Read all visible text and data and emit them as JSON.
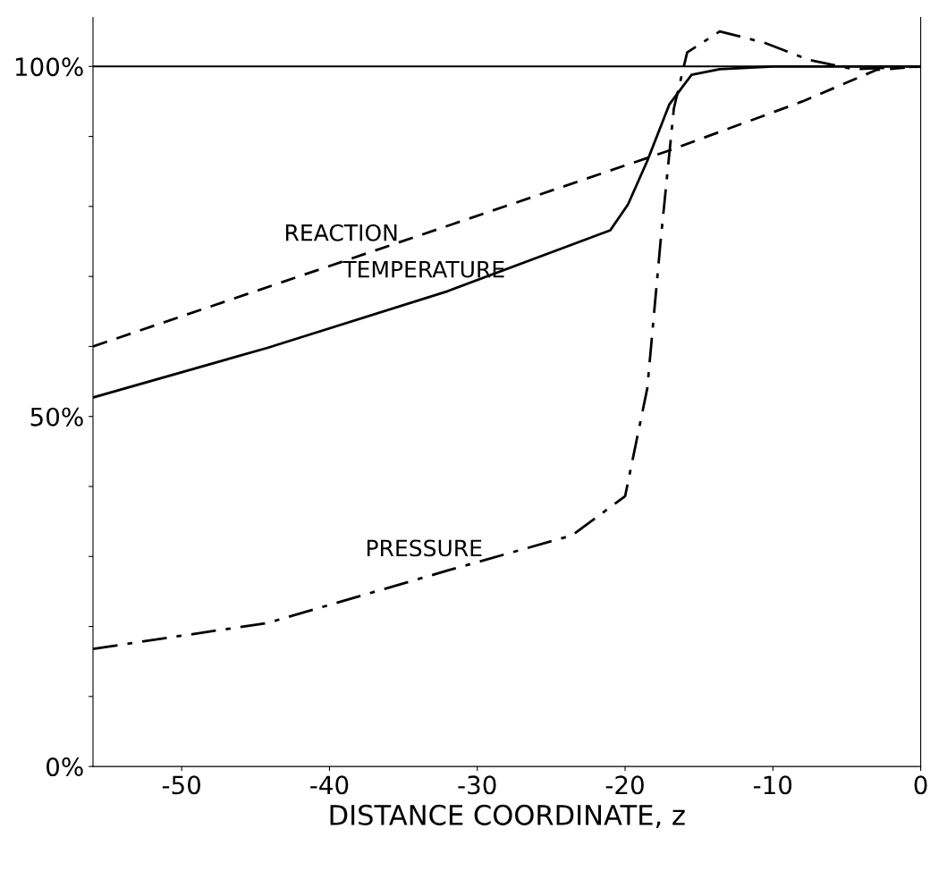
{
  "chart_data": {
    "type": "line",
    "xlabel": "DISTANCE COORDINATE, z",
    "xlim": [
      -56,
      0
    ],
    "xticks": [
      -50,
      -40,
      -30,
      -20,
      -10,
      0
    ],
    "ylim": [
      0,
      107
    ],
    "yticks": [
      {
        "value": 0,
        "label": "0%"
      },
      {
        "value": 10,
        "label": null
      },
      {
        "value": 20,
        "label": null
      },
      {
        "value": 30,
        "label": null
      },
      {
        "value": 40,
        "label": null
      },
      {
        "value": 50,
        "label": "50%"
      },
      {
        "value": 60,
        "label": null
      },
      {
        "value": 70,
        "label": null
      },
      {
        "value": 80,
        "label": null
      },
      {
        "value": 90,
        "label": null
      },
      {
        "value": 100,
        "label": "100%"
      }
    ],
    "grid": false,
    "legend": false,
    "marker": "none",
    "ref_lines": [
      {
        "axis": "y",
        "value": 100,
        "label": null,
        "color": "#000000",
        "line_style": "solid"
      }
    ],
    "series": [
      {
        "name": "REACTION",
        "color": "#000000",
        "line_style": "dashed",
        "x": [
          -56,
          -17,
          -8,
          -3,
          0
        ],
        "values": [
          60,
          88,
          95,
          99.5,
          100
        ]
      },
      {
        "name": "TEMPERATURE",
        "color": "#000000",
        "line_style": "solid",
        "x": [
          -56,
          -44.2,
          -32,
          -21,
          -19.8,
          -18.5,
          -17,
          -15.5,
          -13.6,
          -10,
          0
        ],
        "values": [
          52.7,
          59.8,
          67.9,
          76.6,
          80.3,
          86.5,
          94.6,
          98.8,
          99.6,
          100,
          100
        ]
      },
      {
        "name": "PRESSURE",
        "color": "#000000",
        "line_style": "dashdot",
        "x": [
          -56,
          -44.2,
          -32,
          -23.6,
          -20,
          -18.5,
          -17.6,
          -16.7,
          -15.8,
          -13.6,
          -10.6,
          -7.5,
          -4.5,
          0
        ],
        "values": [
          16.8,
          20.5,
          28,
          33,
          38.6,
          54,
          75,
          94,
          102,
          105,
          103.4,
          100.9,
          99.6,
          100
        ]
      }
    ]
  }
}
